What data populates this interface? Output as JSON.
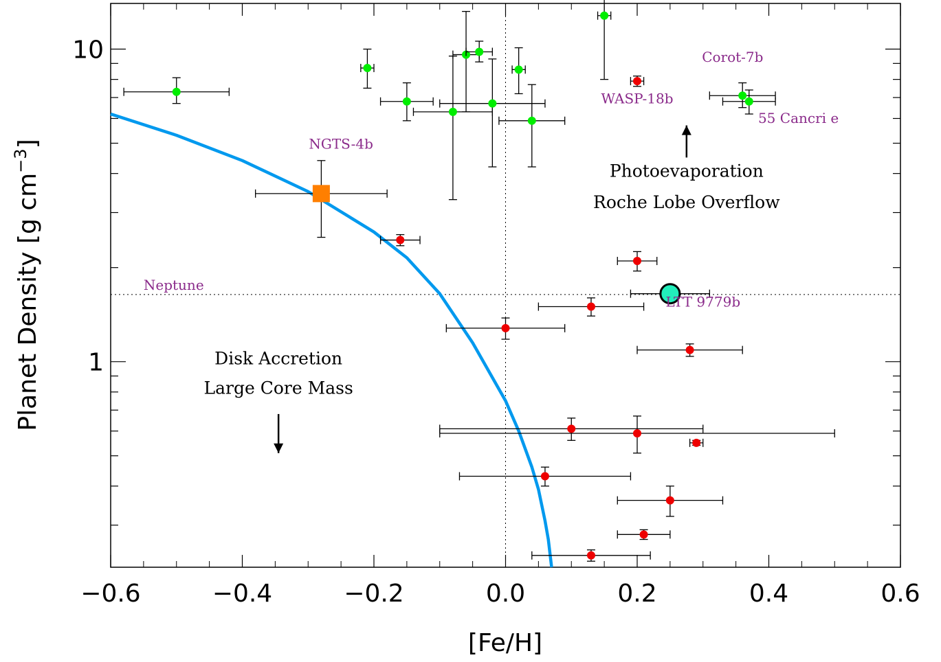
{
  "chart_data": {
    "type": "scatter",
    "xlabel": "[Fe/H]",
    "ylabel": "Planet Density [g cm^-3]",
    "ylabel_main": "Planet Density [g cm",
    "ylabel_sup": "−3",
    "ylabel_close": "]",
    "xlim": [
      -0.6,
      0.6
    ],
    "ylim": [
      0.22,
      14.0
    ],
    "yscale": "log",
    "x_ticks": [
      -0.6,
      -0.4,
      -0.2,
      0.0,
      0.2,
      0.4,
      0.6
    ],
    "x_tick_labels": [
      "−0.6",
      "−0.4",
      "−0.2",
      "0.0",
      "0.2",
      "0.4",
      "0.6"
    ],
    "y_ticks": [
      1,
      10
    ],
    "y_tick_labels": [
      "1",
      "10"
    ],
    "reference_lines": {
      "vertical_x": 0.0,
      "neptune_density": 1.64,
      "neptune_label": "Neptune"
    },
    "model_curve": {
      "color": "#0099ee",
      "x": [
        -0.6,
        -0.5,
        -0.4,
        -0.3,
        -0.2,
        -0.15,
        -0.1,
        -0.05,
        0.0,
        0.02,
        0.04,
        0.05,
        0.06,
        0.065,
        0.07
      ],
      "y": [
        6.2,
        5.3,
        4.4,
        3.5,
        2.6,
        2.15,
        1.65,
        1.15,
        0.75,
        0.6,
        0.46,
        0.39,
        0.31,
        0.27,
        0.22
      ]
    },
    "series": [
      {
        "color": "#00ee00",
        "points": [
          {
            "x": -0.5,
            "y": 7.3,
            "xerr": [
              0.08,
              0.08
            ],
            "yerr": [
              0.6,
              0.8
            ]
          },
          {
            "x": -0.21,
            "y": 8.7,
            "xerr": [
              0.01,
              0.01
            ],
            "yerr": [
              1.2,
              1.3
            ]
          },
          {
            "x": -0.15,
            "y": 6.8,
            "xerr": [
              0.04,
              0.04
            ],
            "yerr": [
              0.9,
              1.0
            ]
          },
          {
            "x": -0.08,
            "y": 6.3,
            "xerr": [
              0.06,
              0.06
            ],
            "yerr": [
              3.0,
              3.2
            ]
          },
          {
            "x": -0.06,
            "y": 9.6,
            "xerr": [
              0.02,
              0.02
            ],
            "yerr": [
              3.3,
              3.6
            ]
          },
          {
            "x": -0.04,
            "y": 9.8,
            "xerr": [
              0.02,
              0.02
            ],
            "yerr": [
              0.7,
              0.8
            ]
          },
          {
            "x": -0.02,
            "y": 6.7,
            "xerr": [
              0.08,
              0.08
            ],
            "yerr": [
              2.5,
              2.6
            ]
          },
          {
            "x": 0.02,
            "y": 8.6,
            "xerr": [
              0.01,
              0.01
            ],
            "yerr": [
              1.4,
              1.5
            ]
          },
          {
            "x": 0.04,
            "y": 5.9,
            "xerr": [
              0.05,
              0.05
            ],
            "yerr": [
              1.7,
              1.8
            ]
          },
          {
            "x": 0.15,
            "y": 12.8,
            "xerr": [
              0.01,
              0.01
            ],
            "yerr": [
              4.8,
              4.8
            ]
          },
          {
            "x": 0.36,
            "y": 7.1,
            "xerr": [
              0.05,
              0.05
            ],
            "yerr": [
              0.6,
              0.7
            ]
          },
          {
            "x": 0.37,
            "y": 6.8,
            "xerr": [
              0.04,
              0.04
            ],
            "yerr": [
              0.6,
              0.6
            ]
          }
        ]
      },
      {
        "color": "#ee0000",
        "points": [
          {
            "x": -0.16,
            "y": 2.45,
            "xerr": [
              0.03,
              0.03
            ],
            "yerr": [
              0.1,
              0.1
            ]
          },
          {
            "x": 0.2,
            "y": 7.9,
            "xerr": [
              0.01,
              0.01
            ],
            "yerr": [
              0.3,
              0.3
            ]
          },
          {
            "x": 0.2,
            "y": 2.1,
            "xerr": [
              0.03,
              0.03
            ],
            "yerr": [
              0.15,
              0.15
            ]
          },
          {
            "x": 0.13,
            "y": 1.5,
            "xerr": [
              0.08,
              0.08
            ],
            "yerr": [
              0.1,
              0.1
            ]
          },
          {
            "x": 0.0,
            "y": 1.28,
            "xerr": [
              0.09,
              0.09
            ],
            "yerr": [
              0.1,
              0.1
            ]
          },
          {
            "x": 0.28,
            "y": 1.09,
            "xerr": [
              0.08,
              0.08
            ],
            "yerr": [
              0.05,
              0.05
            ]
          },
          {
            "x": 0.1,
            "y": 0.61,
            "xerr": [
              0.2,
              0.2
            ],
            "yerr": [
              0.05,
              0.05
            ]
          },
          {
            "x": 0.2,
            "y": 0.59,
            "xerr": [
              0.3,
              0.3
            ],
            "yerr": [
              0.08,
              0.08
            ]
          },
          {
            "x": 0.29,
            "y": 0.55,
            "xerr": [
              0.01,
              0.01
            ],
            "yerr": [
              0.01,
              0.01
            ]
          },
          {
            "x": 0.06,
            "y": 0.43,
            "xerr": [
              0.13,
              0.13
            ],
            "yerr": [
              0.03,
              0.03
            ]
          },
          {
            "x": 0.25,
            "y": 0.36,
            "xerr": [
              0.08,
              0.08
            ],
            "yerr": [
              0.04,
              0.04
            ]
          },
          {
            "x": 0.21,
            "y": 0.28,
            "xerr": [
              0.04,
              0.04
            ],
            "yerr": [
              0.01,
              0.01
            ]
          },
          {
            "x": 0.13,
            "y": 0.24,
            "xerr": [
              0.09,
              0.09
            ],
            "yerr": [
              0.01,
              0.01
            ]
          }
        ]
      },
      {
        "name": "NGTS-4b",
        "color": "#ff7f00",
        "points": [
          {
            "x": -0.28,
            "y": 3.45,
            "xerr": [
              0.1,
              0.1
            ],
            "yerr": [
              0.95,
              0.95
            ]
          }
        ]
      },
      {
        "name": "LTT 9779b",
        "color": "#22eebb",
        "points": [
          {
            "x": 0.25,
            "y": 1.65,
            "xerr": [
              0.06,
              0.06
            ],
            "yerr": [
              0,
              0
            ]
          }
        ]
      }
    ],
    "annotations": [
      {
        "text": "NGTS-4b",
        "x": -0.25,
        "y": 4.8,
        "style": "purple"
      },
      {
        "text": "Neptune",
        "x": -0.55,
        "y": 1.7,
        "style": "purple"
      },
      {
        "text": "LTT 9779b",
        "x": 0.3,
        "y": 1.5,
        "style": "purple"
      },
      {
        "text": "WASP-18b",
        "x": 0.2,
        "y": 6.7,
        "style": "purple"
      },
      {
        "text": "Corot-7b",
        "x": 0.345,
        "y": 9.1,
        "style": "purple"
      },
      {
        "text": "55 Cancri e",
        "x": 0.445,
        "y": 5.8,
        "style": "purple"
      },
      {
        "text": "Photoevaporation",
        "x": 0.275,
        "y": 3.9,
        "style": "black"
      },
      {
        "text": "Roche Lobe Overflow",
        "x": 0.275,
        "y": 3.1,
        "style": "black"
      },
      {
        "text": "Disk Accretion",
        "x": -0.345,
        "y": 0.98,
        "style": "black"
      },
      {
        "text": "Large Core Mass",
        "x": -0.345,
        "y": 0.79,
        "style": "black"
      }
    ],
    "arrows": [
      {
        "direction": "up",
        "x": 0.275,
        "y_from": 4.5,
        "y_to": 5.7
      },
      {
        "direction": "down",
        "x": -0.345,
        "y_from": 0.68,
        "y_to": 0.51
      }
    ]
  }
}
